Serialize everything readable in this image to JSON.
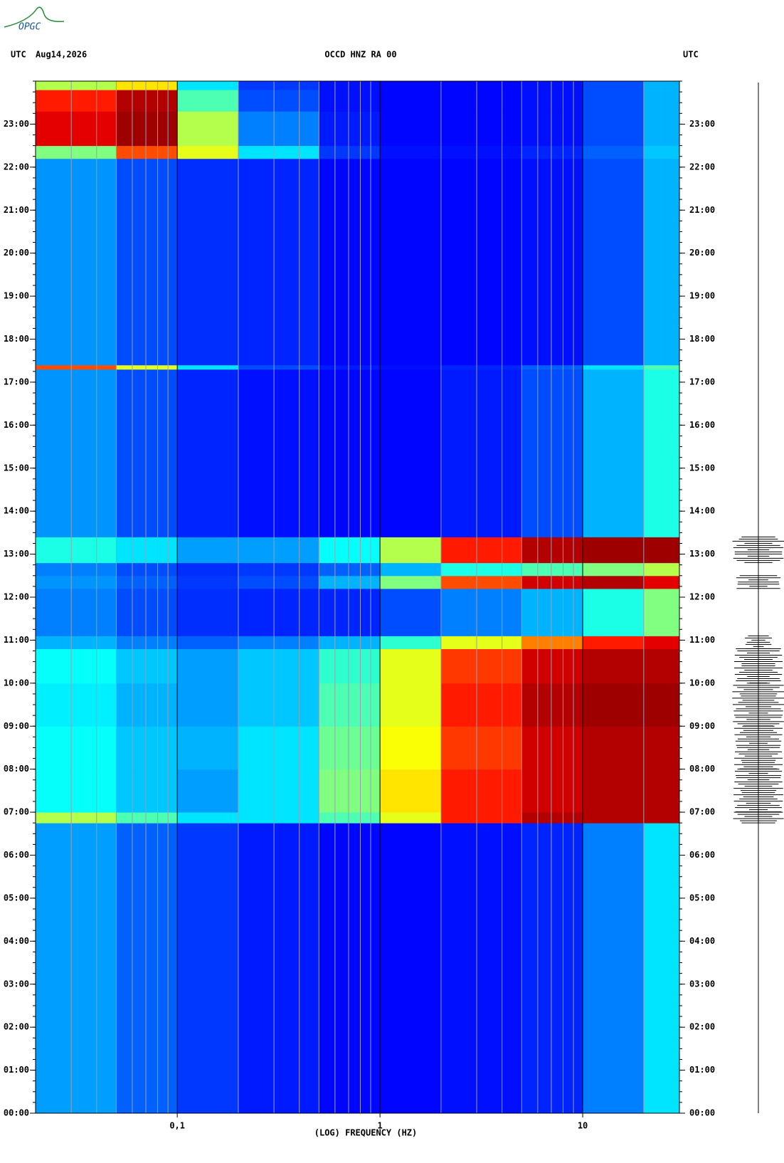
{
  "logo": "OPGC",
  "chart_data": {
    "type": "spectrogram",
    "title": "OCCD HNZ RA 00",
    "left_label": "UTC",
    "date": "Aug14,2026",
    "right_label": "UTC",
    "x_label": "(LOG) FREQUENCY (HZ)",
    "xscale": "log",
    "xlim": [
      0.02,
      30
    ],
    "xticks": [
      {
        "value": 0.1,
        "label": "0,1"
      },
      1,
      10
    ],
    "xminor": [
      0.03,
      0.04,
      0.05,
      0.06,
      0.07,
      0.08,
      0.09,
      0.2,
      0.3,
      0.4,
      0.5,
      0.6,
      0.7,
      0.8,
      0.9,
      2,
      3,
      4,
      5,
      6,
      7,
      8,
      9,
      20
    ],
    "ylim": [
      0,
      24
    ],
    "yticks": [
      {
        "value": 0,
        "label": "00:00"
      },
      {
        "value": 1,
        "label": "01:00"
      },
      {
        "value": 2,
        "label": "02:00"
      },
      {
        "value": 3,
        "label": "03:00"
      },
      {
        "value": 4,
        "label": "04:00"
      },
      {
        "value": 5,
        "label": "05:00"
      },
      {
        "value": 6,
        "label": "06:00"
      },
      {
        "value": 7,
        "label": "07:00"
      },
      {
        "value": 8,
        "label": "08:00"
      },
      {
        "value": 9,
        "label": "09:00"
      },
      {
        "value": 10,
        "label": "10:00"
      },
      {
        "value": 11,
        "label": "11:00"
      },
      {
        "value": 12,
        "label": "12:00"
      },
      {
        "value": 13,
        "label": "13:00"
      },
      {
        "value": 14,
        "label": "14:00"
      },
      {
        "value": 15,
        "label": "15:00"
      },
      {
        "value": 16,
        "label": "16:00"
      },
      {
        "value": 17,
        "label": "17:00"
      },
      {
        "value": 18,
        "label": "18:00"
      },
      {
        "value": 19,
        "label": "19:00"
      },
      {
        "value": 20,
        "label": "20:00"
      },
      {
        "value": 21,
        "label": "21:00"
      },
      {
        "value": 22,
        "label": "22:00"
      },
      {
        "value": 23,
        "label": "23:00"
      }
    ],
    "xbins": [
      0.02,
      0.05,
      0.1,
      0.2,
      0.5,
      1,
      2,
      5,
      10,
      20,
      30
    ],
    "ybins": [
      0,
      6.75,
      7,
      8,
      9,
      10,
      10.8,
      11.1,
      12.2,
      12.5,
      12.8,
      13.4,
      17.3,
      17.4,
      22.2,
      22.5,
      23.3,
      23.8,
      24
    ],
    "colormap": "jet",
    "zlim": [
      0,
      1
    ],
    "z": [
      [
        0.28,
        0.22,
        0.18,
        0.15,
        0.13,
        0.13,
        0.14,
        0.16,
        0.25,
        0.35
      ],
      [
        0.55,
        0.45,
        0.35,
        0.35,
        0.45,
        0.6,
        0.85,
        0.95,
        0.95,
        0.95
      ],
      [
        0.38,
        0.32,
        0.28,
        0.35,
        0.5,
        0.65,
        0.85,
        0.92,
        0.95,
        0.95
      ],
      [
        0.38,
        0.32,
        0.3,
        0.35,
        0.48,
        0.62,
        0.82,
        0.92,
        0.95,
        0.95
      ],
      [
        0.36,
        0.3,
        0.28,
        0.32,
        0.45,
        0.6,
        0.85,
        0.95,
        0.97,
        0.97
      ],
      [
        0.38,
        0.32,
        0.28,
        0.32,
        0.42,
        0.6,
        0.82,
        0.92,
        0.95,
        0.95
      ],
      [
        0.3,
        0.25,
        0.22,
        0.25,
        0.3,
        0.42,
        0.6,
        0.75,
        0.85,
        0.9
      ],
      [
        0.25,
        0.2,
        0.17,
        0.16,
        0.16,
        0.2,
        0.25,
        0.3,
        0.4,
        0.5
      ],
      [
        0.27,
        0.22,
        0.18,
        0.2,
        0.3,
        0.5,
        0.8,
        0.92,
        0.95,
        0.9
      ],
      [
        0.25,
        0.2,
        0.17,
        0.18,
        0.22,
        0.3,
        0.4,
        0.45,
        0.5,
        0.55
      ],
      [
        0.4,
        0.35,
        0.28,
        0.28,
        0.38,
        0.55,
        0.85,
        0.95,
        0.97,
        0.97
      ],
      [
        0.27,
        0.2,
        0.16,
        0.14,
        0.13,
        0.13,
        0.15,
        0.2,
        0.3,
        0.4
      ],
      [
        0.8,
        0.6,
        0.35,
        0.2,
        0.15,
        0.14,
        0.16,
        0.22,
        0.35,
        0.45
      ],
      [
        0.27,
        0.2,
        0.17,
        0.16,
        0.13,
        0.13,
        0.13,
        0.14,
        0.2,
        0.3
      ],
      [
        0.5,
        0.8,
        0.6,
        0.35,
        0.18,
        0.14,
        0.14,
        0.16,
        0.22,
        0.32
      ],
      [
        0.9,
        0.97,
        0.55,
        0.25,
        0.15,
        0.13,
        0.13,
        0.14,
        0.2,
        0.3
      ],
      [
        0.85,
        0.95,
        0.45,
        0.2,
        0.14,
        0.13,
        0.13,
        0.14,
        0.2,
        0.3
      ],
      [
        0.55,
        0.65,
        0.35,
        0.18,
        0.14,
        0.13,
        0.13,
        0.14,
        0.2,
        0.3
      ]
    ]
  }
}
